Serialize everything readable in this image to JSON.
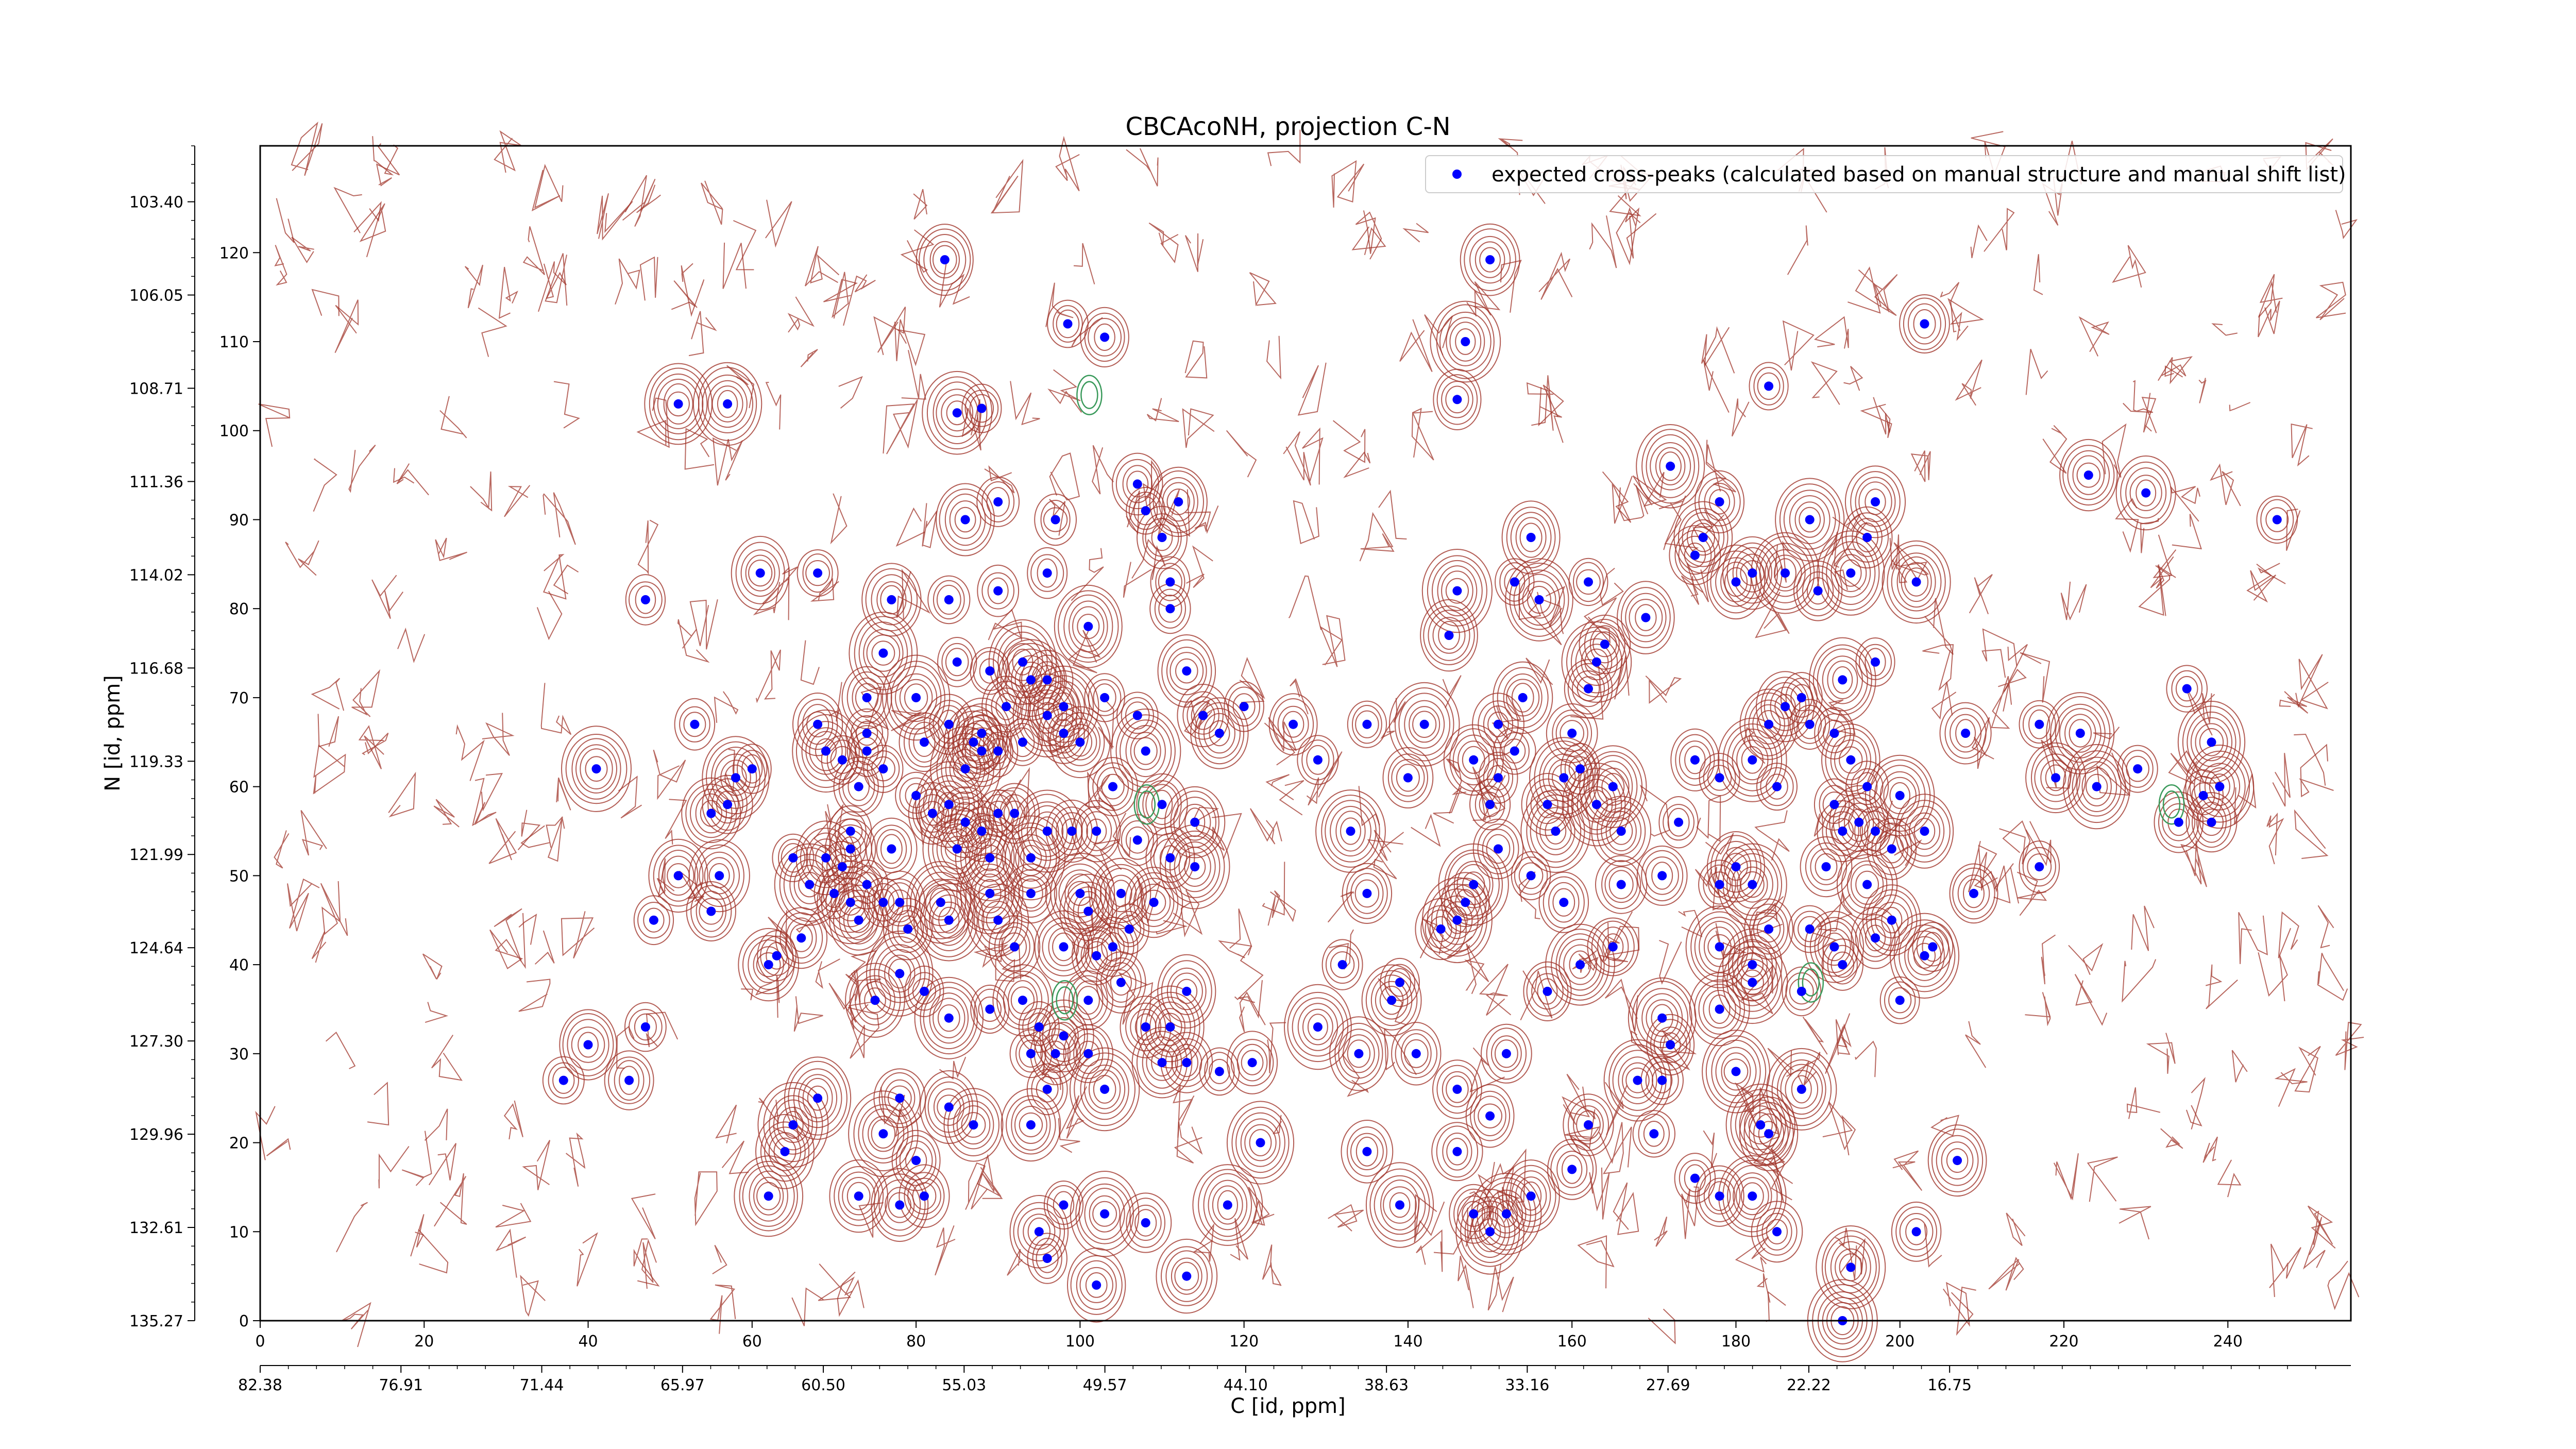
{
  "chart_data": {
    "type": "scatter",
    "title": "CBCAcoNH, projection C-N",
    "xlabel": "C [id, ppm]",
    "ylabel": "N [id, ppm]",
    "xlim": [
      0,
      255
    ],
    "ylim": [
      0,
      132
    ],
    "x_index_ticks": [
      "0",
      "20",
      "40",
      "60",
      "80",
      "100",
      "120",
      "140",
      "160",
      "180",
      "200",
      "220",
      "240"
    ],
    "x_index_tick_values": [
      0,
      20,
      40,
      60,
      80,
      100,
      120,
      140,
      160,
      180,
      200,
      220,
      240
    ],
    "x_ppm_ticks": [
      "82.38",
      "76.91",
      "71.44",
      "65.97",
      "60.50",
      "55.03",
      "49.57",
      "44.10",
      "38.63",
      "33.16",
      "27.69",
      "22.22",
      "16.75"
    ],
    "y_index_ticks": [
      "0",
      "10",
      "20",
      "30",
      "40",
      "50",
      "60",
      "70",
      "80",
      "90",
      "100",
      "110",
      "120"
    ],
    "y_index_tick_values": [
      0,
      10,
      20,
      30,
      40,
      50,
      60,
      70,
      80,
      90,
      100,
      110,
      120
    ],
    "y_ppm_ticks": [
      "135.27",
      "132.61",
      "129.96",
      "127.30",
      "124.64",
      "121.99",
      "119.33",
      "116.68",
      "114.02",
      "111.36",
      "108.71",
      "106.05",
      "103.40"
    ],
    "legend": {
      "label": "expected cross-peaks (calculated based on manual structure and manual shift list)",
      "position": "top-right"
    },
    "colors": {
      "peaks": "#0000ff",
      "positive_contours": "#a0342a",
      "negative_contours": "#3a9a5b"
    },
    "series": [
      {
        "name": "expected cross-peaks (calculated based on manual structure and manual shift list)",
        "points": [
          [
            83.5,
            119.2
          ],
          [
            150,
            119.2
          ],
          [
            98.5,
            112
          ],
          [
            103,
            110.5
          ],
          [
            51,
            103
          ],
          [
            57,
            103
          ],
          [
            88,
            102.5
          ],
          [
            85,
            102
          ],
          [
            147,
            110
          ],
          [
            146,
            103.5
          ],
          [
            203,
            112
          ],
          [
            184,
            105
          ],
          [
            246,
            90
          ],
          [
            230,
            93
          ],
          [
            223,
            95
          ],
          [
            172,
            96
          ],
          [
            189,
            90
          ],
          [
            178,
            92
          ],
          [
            176,
            88
          ],
          [
            180,
            83
          ],
          [
            182,
            84
          ],
          [
            175,
            86
          ],
          [
            186,
            84
          ],
          [
            196,
            88
          ],
          [
            197,
            92
          ],
          [
            194,
            84
          ],
          [
            190,
            82
          ],
          [
            202,
            83
          ],
          [
            155,
            88
          ],
          [
            153,
            83
          ],
          [
            156,
            81
          ],
          [
            162,
            83
          ],
          [
            169,
            79
          ],
          [
            146,
            82
          ],
          [
            145,
            77
          ],
          [
            107,
            94
          ],
          [
            108,
            91
          ],
          [
            110,
            88
          ],
          [
            112,
            92
          ],
          [
            111,
            83
          ],
          [
            111,
            80
          ],
          [
            97,
            90
          ],
          [
            96,
            84
          ],
          [
            101,
            78
          ],
          [
            90,
            92
          ],
          [
            86,
            90
          ],
          [
            90,
            82
          ],
          [
            84,
            81
          ],
          [
            77,
            81
          ],
          [
            68,
            84
          ],
          [
            61,
            84
          ],
          [
            47,
            81
          ],
          [
            76,
            75
          ],
          [
            85,
            74
          ],
          [
            89,
            73
          ],
          [
            93,
            74
          ],
          [
            96,
            72
          ],
          [
            96,
            68
          ],
          [
            98,
            66
          ],
          [
            100,
            65
          ],
          [
            93,
            65
          ],
          [
            88,
            66
          ],
          [
            86,
            62
          ],
          [
            88,
            64
          ],
          [
            90,
            64
          ],
          [
            81,
            65
          ],
          [
            74,
            66
          ],
          [
            74,
            64
          ],
          [
            76,
            62
          ],
          [
            69,
            64
          ],
          [
            71,
            63
          ],
          [
            73,
            60
          ],
          [
            80,
            59
          ],
          [
            82,
            57
          ],
          [
            84,
            58
          ],
          [
            86,
            56
          ],
          [
            88,
            55
          ],
          [
            90,
            57
          ],
          [
            92,
            57
          ],
          [
            96,
            55
          ],
          [
            99,
            55
          ],
          [
            94,
            52
          ],
          [
            89,
            52
          ],
          [
            85,
            53
          ],
          [
            77,
            53
          ],
          [
            72,
            55
          ],
          [
            72,
            53
          ],
          [
            71,
            51
          ],
          [
            69,
            52
          ],
          [
            65,
            52
          ],
          [
            67,
            49
          ],
          [
            70,
            48
          ],
          [
            72,
            47
          ],
          [
            74,
            49
          ],
          [
            76,
            47
          ],
          [
            78,
            47
          ],
          [
            83,
            47
          ],
          [
            89,
            48
          ],
          [
            90,
            45
          ],
          [
            94,
            48
          ],
          [
            100,
            48
          ],
          [
            101,
            46
          ],
          [
            105,
            48
          ],
          [
            106,
            44
          ],
          [
            104,
            42
          ],
          [
            102,
            41
          ],
          [
            98,
            42
          ],
          [
            92,
            42
          ],
          [
            84,
            45
          ],
          [
            79,
            44
          ],
          [
            73,
            45
          ],
          [
            66,
            43
          ],
          [
            63,
            41
          ],
          [
            62,
            40
          ],
          [
            78,
            39
          ],
          [
            75,
            36
          ],
          [
            81,
            37
          ],
          [
            84,
            34
          ],
          [
            93,
            36
          ],
          [
            89,
            35
          ],
          [
            95,
            33
          ],
          [
            98,
            32
          ],
          [
            94,
            30
          ],
          [
            97,
            30
          ],
          [
            101,
            30
          ],
          [
            108,
            33
          ],
          [
            110,
            29
          ],
          [
            96,
            26
          ],
          [
            103,
            26
          ],
          [
            94,
            22
          ],
          [
            84,
            24
          ],
          [
            87,
            22
          ],
          [
            78,
            25
          ],
          [
            68,
            25
          ],
          [
            80,
            18
          ],
          [
            78,
            13
          ],
          [
            73,
            14
          ],
          [
            65,
            22
          ],
          [
            40,
            31
          ],
          [
            47,
            33
          ],
          [
            48,
            45
          ],
          [
            51,
            50
          ],
          [
            56,
            50
          ],
          [
            57,
            58
          ],
          [
            60,
            62
          ],
          [
            53,
            67
          ],
          [
            41,
            62
          ],
          [
            110,
            58
          ],
          [
            114,
            56
          ],
          [
            114,
            51
          ],
          [
            117,
            66
          ],
          [
            115,
            68
          ],
          [
            113,
            73
          ],
          [
            120,
            69
          ],
          [
            126,
            67
          ],
          [
            129,
            63
          ],
          [
            135,
            67
          ],
          [
            133,
            55
          ],
          [
            135,
            48
          ],
          [
            132,
            40
          ],
          [
            139,
            38
          ],
          [
            144,
            44
          ],
          [
            146,
            45
          ],
          [
            147,
            47
          ],
          [
            148,
            49
          ],
          [
            151,
            53
          ],
          [
            150,
            58
          ],
          [
            151,
            61
          ],
          [
            148,
            63
          ],
          [
            151,
            67
          ],
          [
            154,
            70
          ],
          [
            153,
            64
          ],
          [
            159,
            61
          ],
          [
            142,
            67
          ],
          [
            140,
            61
          ],
          [
            157,
            58
          ],
          [
            158,
            55
          ],
          [
            155,
            50
          ],
          [
            159,
            47
          ],
          [
            166,
            49
          ],
          [
            166,
            55
          ],
          [
            165,
            60
          ],
          [
            163,
            58
          ],
          [
            161,
            62
          ],
          [
            160,
            66
          ],
          [
            162,
            71
          ],
          [
            163,
            74
          ],
          [
            164,
            76
          ],
          [
            173,
            56
          ],
          [
            171,
            50
          ],
          [
            178,
            49
          ],
          [
            180,
            51
          ],
          [
            182,
            49
          ],
          [
            175,
            63
          ],
          [
            178,
            61
          ],
          [
            182,
            63
          ],
          [
            184,
            67
          ],
          [
            186,
            69
          ],
          [
            189,
            67
          ],
          [
            192,
            66
          ],
          [
            194,
            63
          ],
          [
            196,
            60
          ],
          [
            192,
            58
          ],
          [
            195,
            56
          ],
          [
            197,
            55
          ],
          [
            193,
            55
          ],
          [
            191,
            51
          ],
          [
            196,
            49
          ],
          [
            199,
            53
          ],
          [
            203,
            55
          ],
          [
            209,
            48
          ],
          [
            208,
            66
          ],
          [
            217,
            67
          ],
          [
            222,
            66
          ],
          [
            219,
            61
          ],
          [
            224,
            60
          ],
          [
            229,
            62
          ],
          [
            234,
            56
          ],
          [
            237,
            59
          ],
          [
            238,
            56
          ],
          [
            239,
            60
          ],
          [
            238,
            65
          ],
          [
            235,
            71
          ],
          [
            217,
            51
          ],
          [
            200,
            59
          ],
          [
            197,
            74
          ],
          [
            193,
            72
          ],
          [
            188,
            70
          ],
          [
            185,
            60
          ],
          [
            182,
            40
          ],
          [
            178,
            42
          ],
          [
            182,
            38
          ],
          [
            184,
            44
          ],
          [
            189,
            44
          ],
          [
            192,
            42
          ],
          [
            193,
            40
          ],
          [
            197,
            43
          ],
          [
            199,
            45
          ],
          [
            203,
            41
          ],
          [
            204,
            42
          ],
          [
            200,
            36
          ],
          [
            188,
            37
          ],
          [
            178,
            35
          ],
          [
            171,
            34
          ],
          [
            171,
            27
          ],
          [
            172,
            31
          ],
          [
            170,
            21
          ],
          [
            168,
            27
          ],
          [
            183,
            22
          ],
          [
            182,
            14
          ],
          [
            185,
            10
          ],
          [
            194,
            6
          ],
          [
            193,
            0
          ],
          [
            202,
            10
          ],
          [
            207,
            18
          ],
          [
            113,
            5
          ],
          [
            108,
            11
          ],
          [
            103,
            12
          ],
          [
            102,
            4
          ],
          [
            96,
            7
          ],
          [
            98,
            13
          ],
          [
            95,
            10
          ],
          [
            81,
            14
          ],
          [
            76,
            21
          ],
          [
            64,
            19
          ],
          [
            62,
            14
          ],
          [
            45,
            27
          ],
          [
            37,
            27
          ],
          [
            55,
            46
          ],
          [
            55,
            57
          ],
          [
            58,
            61
          ],
          [
            68,
            67
          ],
          [
            74,
            70
          ],
          [
            80,
            70
          ],
          [
            84,
            67
          ],
          [
            87,
            65
          ],
          [
            91,
            69
          ],
          [
            94,
            72
          ],
          [
            98,
            69
          ],
          [
            103,
            70
          ],
          [
            107,
            68
          ],
          [
            108,
            64
          ],
          [
            104,
            60
          ],
          [
            102,
            55
          ],
          [
            107,
            54
          ],
          [
            111,
            52
          ],
          [
            109,
            47
          ],
          [
            105,
            38
          ],
          [
            101,
            36
          ],
          [
            113,
            37
          ],
          [
            111,
            33
          ],
          [
            113,
            29
          ],
          [
            117,
            28
          ],
          [
            121,
            29
          ],
          [
            129,
            33
          ],
          [
            134,
            30
          ],
          [
            138,
            36
          ],
          [
            141,
            30
          ],
          [
            146,
            26
          ],
          [
            150,
            23
          ],
          [
            152,
            30
          ],
          [
            157,
            37
          ],
          [
            161,
            40
          ],
          [
            165,
            42
          ],
          [
            146,
            19
          ],
          [
            148,
            12
          ],
          [
            152,
            12
          ],
          [
            150,
            10
          ],
          [
            139,
            13
          ],
          [
            135,
            19
          ],
          [
            122,
            20
          ],
          [
            118,
            13
          ],
          [
            160,
            17
          ],
          [
            162,
            22
          ],
          [
            155,
            14
          ],
          [
            175,
            16
          ],
          [
            178,
            14
          ],
          [
            184,
            21
          ],
          [
            188,
            26
          ],
          [
            180,
            28
          ]
        ]
      }
    ]
  }
}
